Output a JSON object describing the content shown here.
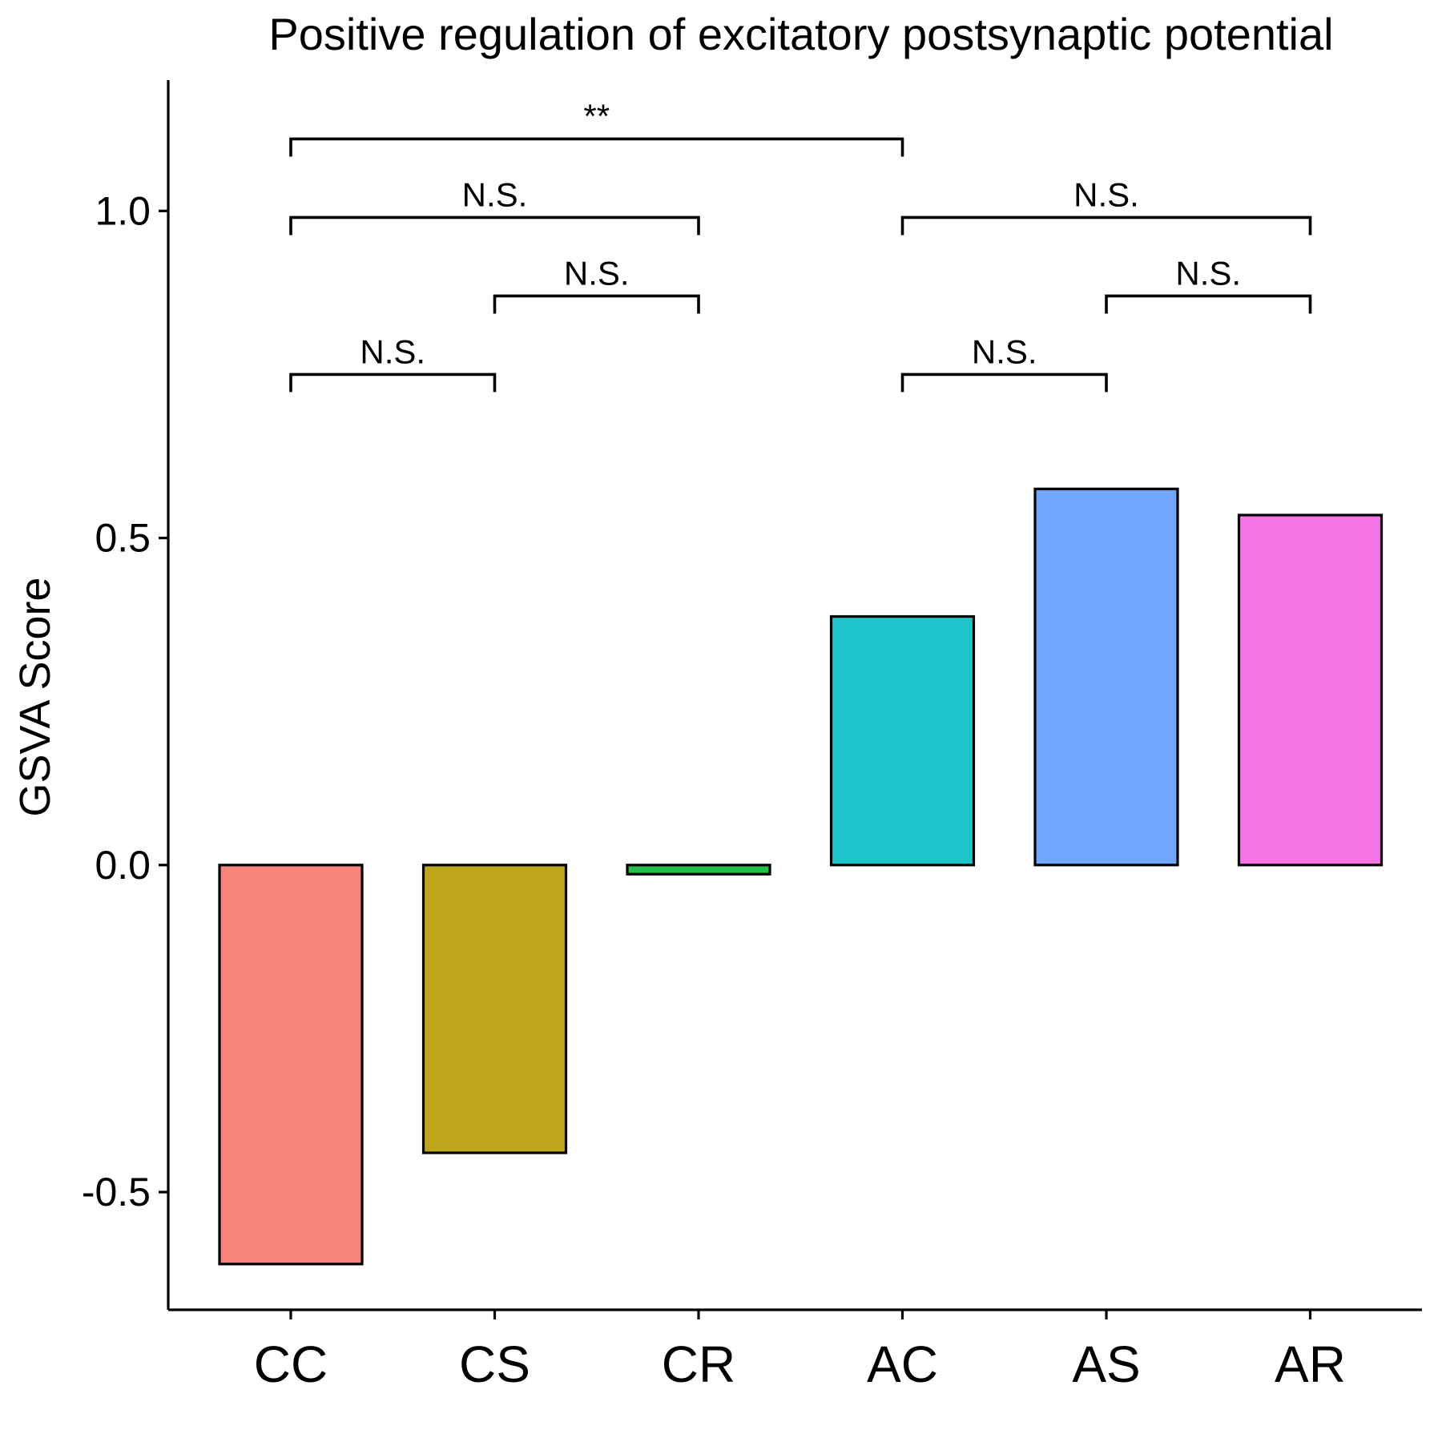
{
  "chart_data": {
    "type": "bar",
    "title": "Positive regulation of excitatory postsynaptic potential",
    "xlabel": "",
    "ylabel": "GSVA Score",
    "categories": [
      "CC",
      "CS",
      "CR",
      "AC",
      "AS",
      "AR"
    ],
    "values": [
      -0.61,
      -0.44,
      -0.014,
      0.38,
      0.575,
      0.535
    ],
    "colors": [
      "#F8847C",
      "#BDA619",
      "#20C04A",
      "#1DC4CA",
      "#72A6FC",
      "#F575E4"
    ],
    "ylim": [
      -0.68,
      1.2
    ],
    "yticks": [
      -0.5,
      0.0,
      0.5,
      1.0
    ],
    "ytick_labels": [
      "-0.5",
      "0.0",
      "0.5",
      "1.0"
    ],
    "grid": false,
    "legend": "none",
    "comparisons": [
      {
        "from": "CC",
        "to": "AC",
        "label": "**",
        "y": 1.11
      },
      {
        "from": "CC",
        "to": "CR",
        "label": "N.S.",
        "y": 0.99
      },
      {
        "from": "AC",
        "to": "AR",
        "label": "N.S.",
        "y": 0.99
      },
      {
        "from": "CS",
        "to": "CR",
        "label": "N.S.",
        "y": 0.87
      },
      {
        "from": "AS",
        "to": "AR",
        "label": "N.S.",
        "y": 0.87
      },
      {
        "from": "CC",
        "to": "CS",
        "label": "N.S.",
        "y": 0.75
      },
      {
        "from": "AC",
        "to": "AS",
        "label": "N.S.",
        "y": 0.75
      }
    ]
  }
}
